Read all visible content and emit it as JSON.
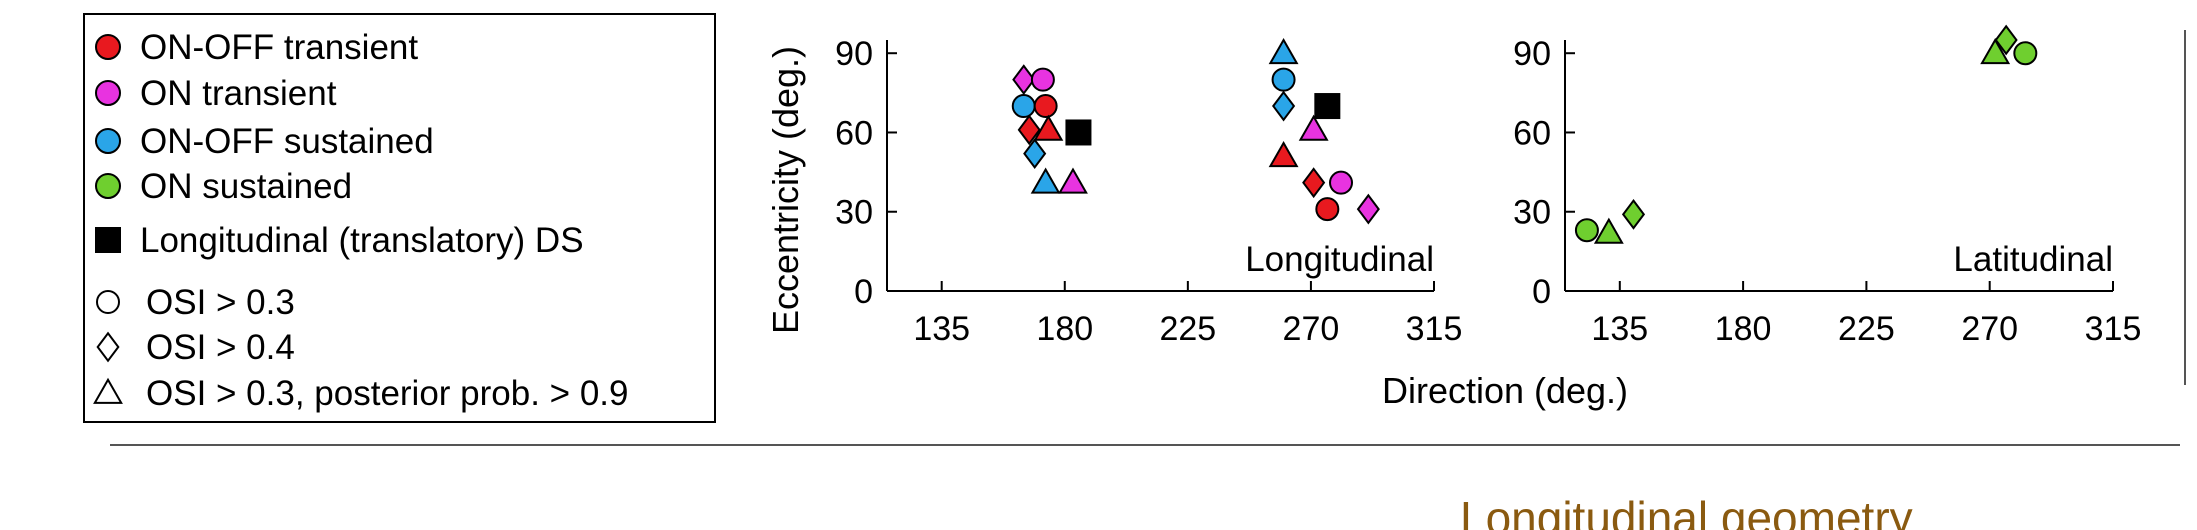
{
  "legend": {
    "items": [
      {
        "label": "ON-OFF transient",
        "shape": "circle",
        "color": "#e8191f"
      },
      {
        "label": "ON transient",
        "shape": "circle",
        "color": "#e833e0"
      },
      {
        "label": "ON-OFF sustained",
        "shape": "circle",
        "color": "#2aa5e8"
      },
      {
        "label": "ON sustained",
        "shape": "circle",
        "color": "#6fcf2f"
      },
      {
        "label": "Longitudinal (translatory) DS",
        "shape": "square",
        "color": "#000000"
      },
      {
        "label": "OSI > 0.3",
        "shape": "circle",
        "color": "none"
      },
      {
        "label": "OSI > 0.4",
        "shape": "diamond",
        "color": "none"
      },
      {
        "label": "OSI > 0.3, posterior prob. > 0.9",
        "shape": "triangle",
        "color": "none"
      }
    ]
  },
  "section_title": "Longitudinal geometry",
  "chart_data": [
    {
      "type": "scatter",
      "panel_label": "Longitudinal",
      "xlabel": "Direction (deg.)",
      "ylabel": "Eccentricity (deg.)",
      "xticks": [
        135,
        180,
        225,
        270,
        315
      ],
      "yticks": [
        0,
        30,
        60,
        90
      ],
      "xlim": [
        115,
        315
      ],
      "ylim": [
        0,
        95
      ],
      "points": [
        {
          "x": 165,
          "y": 80,
          "shape": "diamond",
          "cls": "ON transient"
        },
        {
          "x": 172,
          "y": 80,
          "shape": "circle",
          "cls": "ON transient"
        },
        {
          "x": 165,
          "y": 70,
          "shape": "circle",
          "cls": "ON-OFF sustained"
        },
        {
          "x": 173,
          "y": 70,
          "shape": "circle",
          "cls": "ON-OFF transient"
        },
        {
          "x": 167,
          "y": 61,
          "shape": "diamond",
          "cls": "ON-OFF transient"
        },
        {
          "x": 174,
          "y": 61,
          "shape": "triangle",
          "cls": "ON-OFF transient"
        },
        {
          "x": 185,
          "y": 60,
          "shape": "square",
          "cls": "Longitudinal (translatory) DS"
        },
        {
          "x": 169,
          "y": 52,
          "shape": "diamond",
          "cls": "ON-OFF sustained"
        },
        {
          "x": 173,
          "y": 41,
          "shape": "triangle",
          "cls": "ON-OFF sustained"
        },
        {
          "x": 183,
          "y": 41,
          "shape": "triangle",
          "cls": "ON transient"
        },
        {
          "x": 260,
          "y": 90,
          "shape": "triangle",
          "cls": "ON-OFF sustained"
        },
        {
          "x": 260,
          "y": 80,
          "shape": "circle",
          "cls": "ON-OFF sustained"
        },
        {
          "x": 260,
          "y": 70,
          "shape": "diamond",
          "cls": "ON-OFF sustained"
        },
        {
          "x": 276,
          "y": 70,
          "shape": "square",
          "cls": "Longitudinal (translatory) DS"
        },
        {
          "x": 271,
          "y": 61,
          "shape": "triangle",
          "cls": "ON transient"
        },
        {
          "x": 260,
          "y": 51,
          "shape": "triangle",
          "cls": "ON-OFF transient"
        },
        {
          "x": 271,
          "y": 41,
          "shape": "diamond",
          "cls": "ON-OFF transient"
        },
        {
          "x": 281,
          "y": 41,
          "shape": "circle",
          "cls": "ON transient"
        },
        {
          "x": 276,
          "y": 31,
          "shape": "circle",
          "cls": "ON-OFF transient"
        },
        {
          "x": 291,
          "y": 31,
          "shape": "diamond",
          "cls": "ON transient"
        }
      ]
    },
    {
      "type": "scatter",
      "panel_label": "Latitudinal",
      "xlabel": "Direction (deg.)",
      "ylabel": "",
      "xticks": [
        135,
        180,
        225,
        270,
        315
      ],
      "yticks": [
        0,
        30,
        60,
        90
      ],
      "xlim": [
        115,
        315
      ],
      "ylim": [
        0,
        95
      ],
      "points": [
        {
          "x": 276,
          "y": 95,
          "shape": "diamond",
          "cls": "ON sustained"
        },
        {
          "x": 283,
          "y": 90,
          "shape": "circle",
          "cls": "ON sustained"
        },
        {
          "x": 272,
          "y": 90,
          "shape": "triangle",
          "cls": "ON sustained"
        },
        {
          "x": 140,
          "y": 29,
          "shape": "diamond",
          "cls": "ON sustained"
        },
        {
          "x": 123,
          "y": 23,
          "shape": "circle",
          "cls": "ON sustained"
        },
        {
          "x": 131,
          "y": 22,
          "shape": "triangle",
          "cls": "ON sustained"
        }
      ]
    }
  ]
}
